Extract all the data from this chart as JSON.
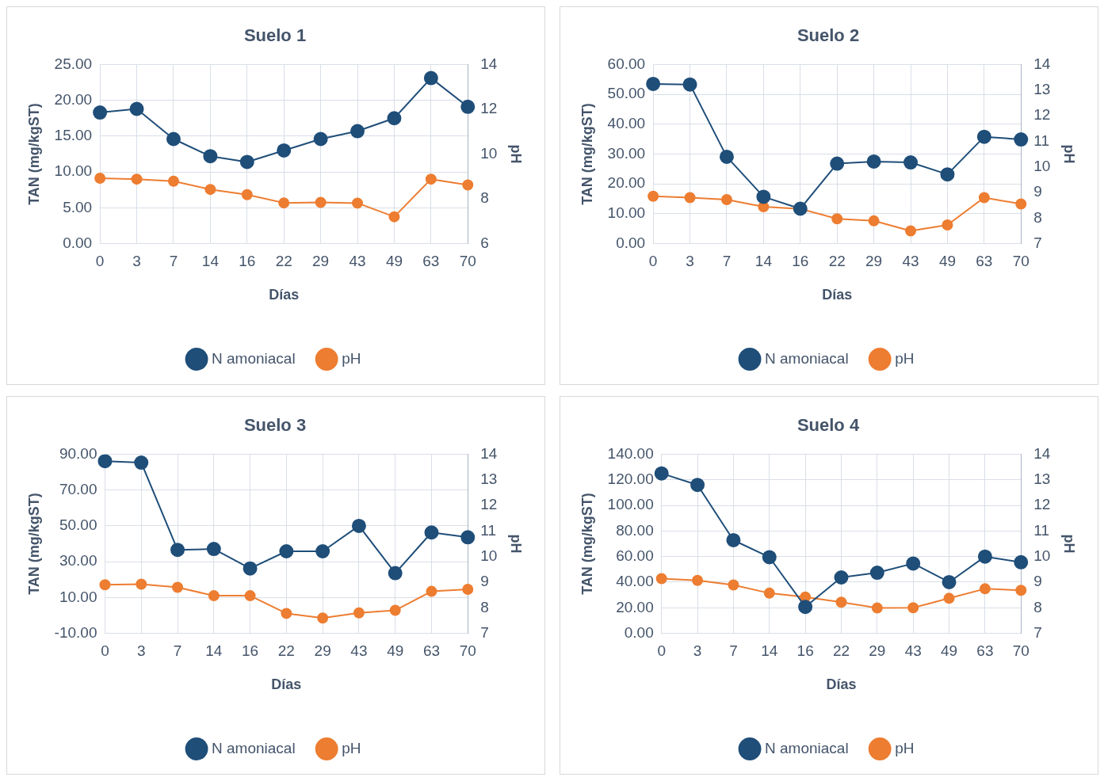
{
  "chart_data": [
    {
      "type": "line",
      "title": "Suelo 1",
      "xlabel": "Días",
      "ylabel": "TAN (mg/kgST)",
      "y2label": "pH",
      "categories": [
        "0",
        "3",
        "7",
        "14",
        "16",
        "22",
        "29",
        "43",
        "49",
        "63",
        "70"
      ],
      "series": [
        {
          "name": "N amoniacal",
          "color": "#1f4e79",
          "values": [
            18.3,
            18.8,
            14.6,
            12.2,
            11.4,
            13.0,
            14.6,
            15.7,
            17.5,
            23.1,
            19.1
          ]
        },
        {
          "name": "pH",
          "color": "#ed7d31",
          "axis": "y2",
          "values": [
            8.92,
            8.88,
            8.79,
            8.42,
            8.19,
            7.82,
            7.84,
            7.81,
            7.2,
            8.88,
            8.62
          ]
        }
      ],
      "ylim": [
        0,
        25
      ],
      "yticks": [
        {
          "value": 0,
          "label": "0.00"
        },
        {
          "value": 5,
          "label": "5.00"
        },
        {
          "value": 10,
          "label": "10.00"
        },
        {
          "value": 15,
          "label": "15.00"
        },
        {
          "value": 20,
          "label": "20.00"
        },
        {
          "value": 25,
          "label": "25.00"
        }
      ],
      "y2lim": [
        6,
        14
      ],
      "y2ticks": [
        6,
        8,
        10,
        12,
        14
      ],
      "grid": true,
      "legend": "bottom",
      "marker": "circle",
      "line_style": "solid"
    },
    {
      "type": "line",
      "title": "Suelo 2",
      "xlabel": "Días",
      "ylabel": "TAN (mg/kgST)",
      "y2label": "pH",
      "categories": [
        "0",
        "3",
        "7",
        "14",
        "16",
        "22",
        "29",
        "43",
        "49",
        "63",
        "70"
      ],
      "series": [
        {
          "name": "N amoniacal",
          "color": "#1f4e79",
          "values": [
            53.5,
            53.3,
            29.1,
            15.7,
            11.7,
            26.8,
            27.5,
            27.2,
            23.2,
            35.8,
            34.9
          ]
        },
        {
          "name": "pH",
          "color": "#ed7d31",
          "axis": "y2",
          "values": [
            8.85,
            8.8,
            8.72,
            8.44,
            8.36,
            7.97,
            7.89,
            7.5,
            7.73,
            8.8,
            8.55
          ]
        }
      ],
      "ylim": [
        0,
        60
      ],
      "yticks": [
        {
          "value": 0,
          "label": "0.00"
        },
        {
          "value": 10,
          "label": "10.00"
        },
        {
          "value": 20,
          "label": "20.00"
        },
        {
          "value": 30,
          "label": "30.00"
        },
        {
          "value": 40,
          "label": "40.00"
        },
        {
          "value": 50,
          "label": "50.00"
        },
        {
          "value": 60,
          "label": "60.00"
        }
      ],
      "y2lim": [
        7,
        14
      ],
      "y2ticks": [
        7,
        8,
        9,
        10,
        11,
        12,
        13,
        14
      ],
      "grid": true,
      "legend": "bottom",
      "marker": "circle",
      "line_style": "solid"
    },
    {
      "type": "line",
      "title": "Suelo 3",
      "xlabel": "Días",
      "ylabel": "TAN (mg/kgST)",
      "y2label": "pH",
      "categories": [
        "0",
        "3",
        "7",
        "14",
        "16",
        "22",
        "29",
        "43",
        "49",
        "63",
        "70"
      ],
      "series": [
        {
          "name": "N amoniacal",
          "color": "#1f4e79",
          "values": [
            86.1,
            85.3,
            36.6,
            37.1,
            26.2,
            35.8,
            35.8,
            50.0,
            23.6,
            46.3,
            43.6
          ]
        },
        {
          "name": "pH",
          "color": "#ed7d31",
          "axis": "y2",
          "values": [
            8.9,
            8.92,
            8.8,
            8.47,
            8.47,
            7.78,
            7.6,
            7.8,
            7.9,
            8.64,
            8.72
          ]
        }
      ],
      "ylim": [
        -10,
        90
      ],
      "yticks": [
        {
          "value": -10,
          "label": "-10.00"
        },
        {
          "value": 10,
          "label": "10.00"
        },
        {
          "value": 30,
          "label": "30.00"
        },
        {
          "value": 50,
          "label": "50.00"
        },
        {
          "value": 70,
          "label": "70.00"
        },
        {
          "value": 90,
          "label": "90.00"
        }
      ],
      "y2lim": [
        7,
        14
      ],
      "y2ticks": [
        7,
        8,
        9,
        10,
        11,
        12,
        13,
        14
      ],
      "grid": true,
      "legend": "bottom",
      "marker": "circle",
      "line_style": "solid"
    },
    {
      "type": "line",
      "title": "Suelo 4",
      "xlabel": "Días",
      "ylabel": "TAN (mg/kgST)",
      "y2label": "pH",
      "categories": [
        "0",
        "3",
        "7",
        "14",
        "16",
        "22",
        "29",
        "43",
        "49",
        "63",
        "70"
      ],
      "series": [
        {
          "name": "N amoniacal",
          "color": "#1f4e79",
          "values": [
            125,
            116,
            72.8,
            59.5,
            20.7,
            43.7,
            47.4,
            54.6,
            40,
            60,
            55.6
          ]
        },
        {
          "name": "pH",
          "color": "#ed7d31",
          "axis": "y2",
          "values": [
            9.14,
            9.07,
            8.89,
            8.57,
            8.42,
            8.22,
            7.99,
            8.0,
            8.37,
            8.74,
            8.68
          ]
        }
      ],
      "ylim": [
        0,
        140
      ],
      "yticks": [
        {
          "value": 0,
          "label": "0.00"
        },
        {
          "value": 20,
          "label": "20.00"
        },
        {
          "value": 40,
          "label": "40.00"
        },
        {
          "value": 60,
          "label": "60.00"
        },
        {
          "value": 80,
          "label": "80.00"
        },
        {
          "value": 100,
          "label": "100.00"
        },
        {
          "value": 120,
          "label": "120.00"
        },
        {
          "value": 140,
          "label": "140.00"
        }
      ],
      "y2lim": [
        7,
        14
      ],
      "y2ticks": [
        7,
        8,
        9,
        10,
        11,
        12,
        13,
        14
      ],
      "grid": true,
      "legend": "bottom",
      "marker": "circle",
      "line_style": "solid"
    }
  ]
}
